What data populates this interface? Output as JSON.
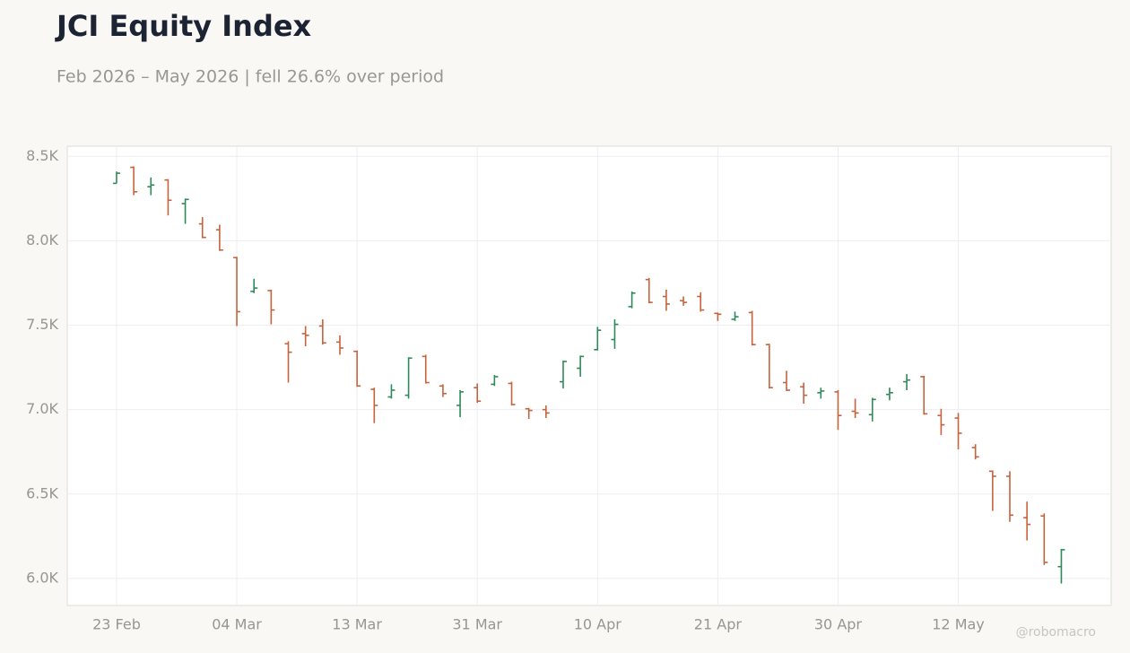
{
  "chart_data": {
    "type": "ohlc",
    "title": "JCI Equity Index",
    "subtitle": "Feb 2026 – May 2026 | fell 26.6% over period",
    "watermark": "@robomacro",
    "up_color": "#2e8a58",
    "down_color": "#c6633d",
    "grid": true,
    "categories": [
      "23 Feb",
      null,
      null,
      null,
      null,
      null,
      null,
      "04 Mar",
      null,
      null,
      null,
      null,
      null,
      null,
      "13 Mar",
      null,
      null,
      null,
      null,
      null,
      null,
      "31 Mar",
      null,
      null,
      null,
      null,
      null,
      null,
      "10 Apr",
      null,
      null,
      null,
      null,
      null,
      null,
      "21 Apr",
      null,
      null,
      null,
      null,
      null,
      null,
      "30 Apr",
      null,
      null,
      null,
      null,
      null,
      null,
      "12 May",
      null,
      null,
      null,
      null,
      null,
      null
    ],
    "open": [
      8340,
      8435,
      8320,
      8360,
      8220,
      8100,
      8065,
      7900,
      7700,
      7705,
      7390,
      7450,
      7495,
      7400,
      7345,
      7120,
      7075,
      7085,
      7315,
      7140,
      7025,
      7130,
      7150,
      7155,
      7005,
      7000,
      7165,
      7245,
      7355,
      7415,
      7610,
      7770,
      7670,
      7645,
      7670,
      7570,
      7535,
      7575,
      7385,
      7160,
      7135,
      7100,
      7105,
      6990,
      6970,
      7090,
      7165,
      7195,
      6965,
      6950,
      6775,
      6635,
      6605,
      6360,
      6370,
      6070
    ],
    "high": [
      8410,
      8440,
      8375,
      8365,
      8250,
      8140,
      8095,
      7905,
      7775,
      7710,
      7405,
      7495,
      7535,
      7440,
      7350,
      7130,
      7150,
      7310,
      7325,
      7150,
      7115,
      7155,
      7205,
      7165,
      7010,
      7025,
      7290,
      7320,
      7490,
      7535,
      7700,
      7780,
      7710,
      7670,
      7695,
      7575,
      7580,
      7585,
      7390,
      7230,
      7160,
      7130,
      7115,
      7065,
      7070,
      7130,
      7210,
      7200,
      7005,
      6980,
      6795,
      6640,
      6635,
      6455,
      6385,
      6175
    ],
    "low": [
      8340,
      8270,
      8270,
      8150,
      8100,
      8015,
      7940,
      7495,
      7690,
      7505,
      7160,
      7375,
      7385,
      7325,
      7135,
      6920,
      7065,
      7065,
      7155,
      7075,
      6955,
      7040,
      7140,
      7025,
      6945,
      6950,
      7125,
      7195,
      7350,
      7360,
      7600,
      7630,
      7585,
      7615,
      7580,
      7525,
      7525,
      7380,
      7125,
      7110,
      7035,
      7065,
      6880,
      6950,
      6930,
      7055,
      7115,
      6970,
      6850,
      6765,
      6705,
      6400,
      6335,
      6225,
      6080,
      5970
    ],
    "close": [
      8400,
      8290,
      8330,
      8240,
      8245,
      8020,
      7945,
      7580,
      7720,
      7590,
      7340,
      7440,
      7395,
      7365,
      7140,
      7025,
      7115,
      7305,
      7160,
      7095,
      7105,
      7050,
      7195,
      7030,
      6995,
      6980,
      7285,
      7315,
      7470,
      7505,
      7690,
      7635,
      7625,
      7635,
      7590,
      7565,
      7550,
      7385,
      7130,
      7115,
      7085,
      7110,
      6965,
      6980,
      7060,
      7100,
      7175,
      6975,
      6910,
      6860,
      6720,
      6605,
      6375,
      6320,
      6095,
      6170
    ],
    "ylim": [
      5840,
      8560
    ],
    "yticks": [
      {
        "value": 6000,
        "label": "6.0K"
      },
      {
        "value": 6500,
        "label": "6.5K"
      },
      {
        "value": 7000,
        "label": "7.0K"
      },
      {
        "value": 7500,
        "label": "7.5K"
      },
      {
        "value": 8000,
        "label": "8.0K"
      },
      {
        "value": 8500,
        "label": "8.5K"
      }
    ]
  }
}
